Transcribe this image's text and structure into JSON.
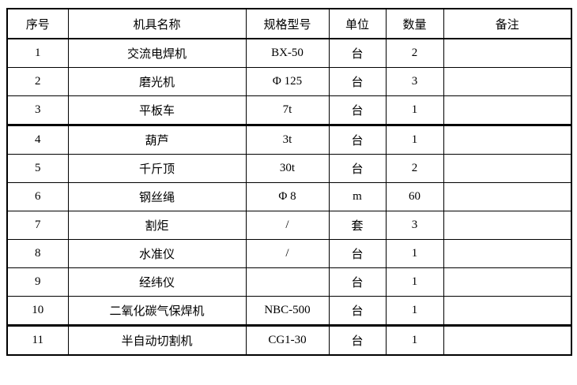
{
  "table": {
    "headers": [
      "序号",
      "机具名称",
      "规格型号",
      "单位",
      "数量",
      "备注"
    ],
    "rows": [
      [
        "1",
        "交流电焊机",
        "BX-50",
        "台",
        "2",
        ""
      ],
      [
        "2",
        "磨光机",
        "Φ 125",
        "台",
        "3",
        ""
      ],
      [
        "3",
        "平板车",
        "7t",
        "台",
        "1",
        ""
      ],
      [
        "4",
        "葫芦",
        "3t",
        "台",
        "1",
        ""
      ],
      [
        "5",
        "千斤顶",
        "30t",
        "台",
        "2",
        ""
      ],
      [
        "6",
        "钢丝绳",
        "Φ 8",
        "m",
        "60",
        ""
      ],
      [
        "7",
        "割炬",
        "/",
        "套",
        "3",
        ""
      ],
      [
        "8",
        "水准仪",
        "/",
        "台",
        "1",
        ""
      ],
      [
        "9",
        "经纬仪",
        "",
        "台",
        "1",
        ""
      ],
      [
        "10",
        "二氧化碳气保焊机",
        "NBC-500",
        "台",
        "1",
        ""
      ],
      [
        "11",
        "半自动切割机",
        "CG1-30",
        "台",
        "1",
        ""
      ]
    ],
    "thick_border_above_row_indexes": [
      3,
      10
    ],
    "colors": {
      "border": "#000000",
      "background": "#ffffff",
      "text": "#000000"
    }
  }
}
